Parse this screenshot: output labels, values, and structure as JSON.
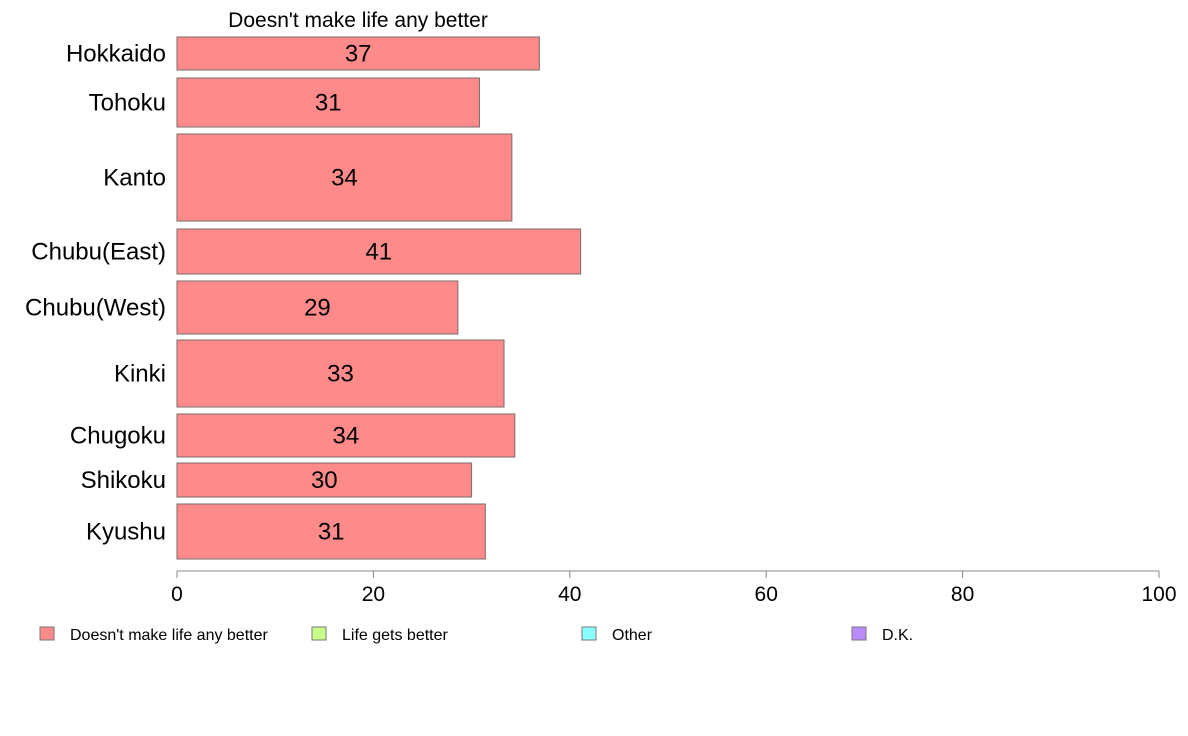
{
  "chart_data": {
    "type": "bar",
    "orientation": "horizontal",
    "title": "Doesn't make life any better",
    "categories": [
      "Hokkaido",
      "Tohoku",
      "Kanto",
      "Chubu(East)",
      "Chubu(West)",
      "Kinki",
      "Chugoku",
      "Shikoku",
      "Kyushu"
    ],
    "series": [
      {
        "name": "Doesn't make life any better",
        "color": "#ff8a8a",
        "values": [
          36.9,
          30.8,
          34.1,
          41.1,
          28.6,
          33.3,
          34.4,
          30.0,
          31.4
        ],
        "labels": [
          "37",
          "31",
          "34",
          "41",
          "29",
          "33",
          "34",
          "30",
          "31"
        ]
      }
    ],
    "xlim": [
      0,
      100
    ],
    "xticks": [
      "0",
      "20",
      "40",
      "60",
      "80",
      "100"
    ],
    "grid": false,
    "legend_position": "bottom",
    "legend": [
      {
        "label": "Doesn't make life any better",
        "color": "#ff8a8a"
      },
      {
        "label": "Life gets better",
        "color": "#c8ff8a"
      },
      {
        "label": "Other",
        "color": "#8affff"
      },
      {
        "label": "D.K.",
        "color": "#bb8aff"
      }
    ]
  }
}
